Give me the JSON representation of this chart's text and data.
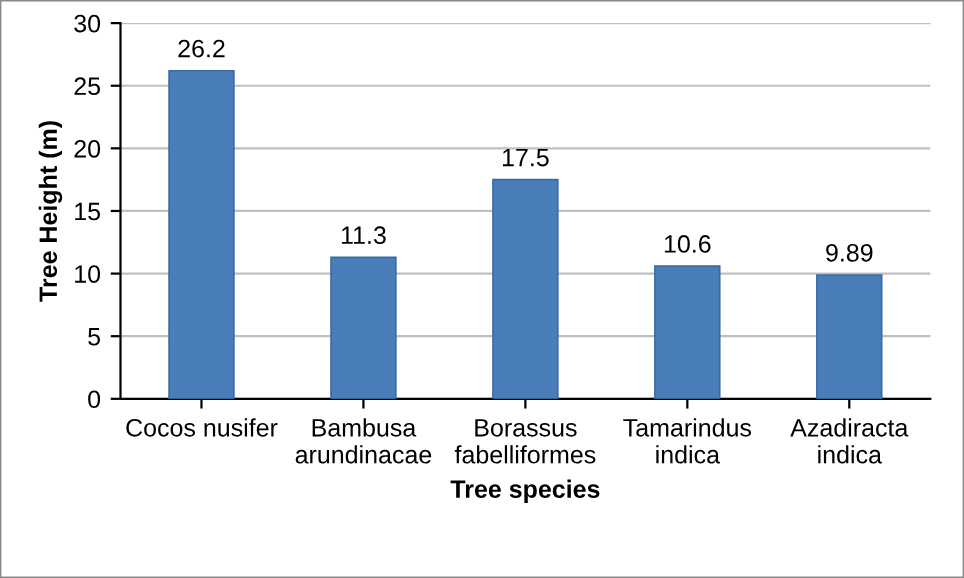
{
  "chart_data": {
    "type": "bar",
    "xlabel": "Tree species",
    "ylabel": "Tree Height (m)",
    "categories": [
      "Cocos nusifer",
      "Bambusa\narundinacae",
      "Borassus\nfabelliformes",
      "Tamarindus\nindica",
      "Azadiracta\nindica"
    ],
    "values": [
      26.2,
      11.3,
      17.5,
      10.6,
      9.89
    ],
    "color": "#4a7ebb",
    "ylim": [
      0,
      30
    ],
    "yticks": [
      0,
      5,
      10,
      15,
      20,
      25,
      30
    ],
    "grid": "y",
    "data_labels": true,
    "legend": false
  }
}
